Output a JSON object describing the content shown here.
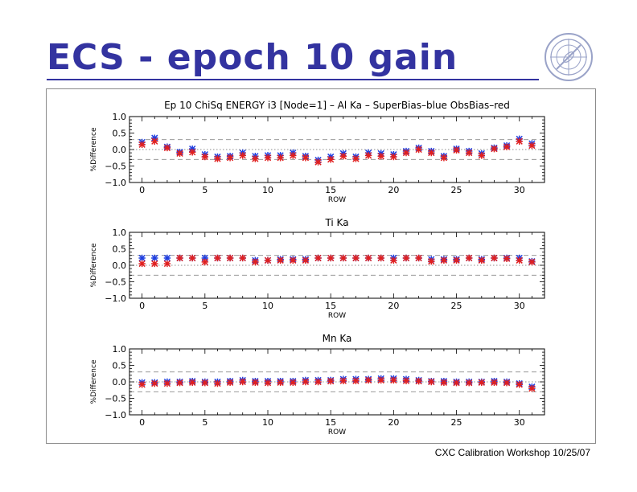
{
  "slide": {
    "title": "ECS - epoch 10 gain",
    "footer": "CXC Calibration Workshop 10/25/07",
    "logo_icon": "chandra-xray-center-logo-icon"
  },
  "colors": {
    "title": "#3333a0",
    "superbias": "#1f3fe0",
    "obsbias": "#e02020"
  },
  "chart_data": [
    {
      "type": "scatter",
      "title": "Ep 10 ChiSq ENERGY i3 [Node=1] – Al Ka – SuperBias–blue ObsBias–red",
      "xlabel": "ROW",
      "ylabel": "%Difference",
      "xlim": [
        -1,
        32
      ],
      "ylim": [
        -1.0,
        1.0
      ],
      "x_ticks": [
        0,
        5,
        10,
        15,
        20,
        25,
        30
      ],
      "y_ticks": [
        "1.0",
        "0.5",
        "0.0",
        "−0.5",
        "−1.0"
      ],
      "reference_lines": {
        "dotted": [
          0.0
        ],
        "dashed": [
          0.3,
          -0.3
        ]
      },
      "x": [
        0,
        1,
        2,
        3,
        4,
        5,
        6,
        7,
        8,
        9,
        10,
        11,
        12,
        13,
        14,
        15,
        16,
        17,
        18,
        19,
        20,
        21,
        22,
        23,
        24,
        25,
        26,
        27,
        28,
        29,
        30,
        31
      ],
      "series": [
        {
          "name": "SuperBias",
          "color": "blue",
          "values": [
            0.22,
            0.35,
            0.08,
            -0.08,
            0.02,
            -0.15,
            -0.22,
            -0.2,
            -0.1,
            -0.2,
            -0.18,
            -0.18,
            -0.1,
            -0.2,
            -0.32,
            -0.22,
            -0.12,
            -0.22,
            -0.1,
            -0.12,
            -0.15,
            -0.05,
            0.05,
            -0.05,
            -0.2,
            0.02,
            -0.05,
            -0.12,
            0.05,
            0.12,
            0.32,
            0.18
          ]
        },
        {
          "name": "ObsBias",
          "color": "red",
          "values": [
            0.15,
            0.25,
            0.05,
            -0.12,
            -0.08,
            -0.22,
            -0.28,
            -0.25,
            -0.18,
            -0.28,
            -0.25,
            -0.25,
            -0.18,
            -0.25,
            -0.38,
            -0.3,
            -0.2,
            -0.28,
            -0.18,
            -0.2,
            -0.22,
            -0.1,
            0.0,
            -0.1,
            -0.25,
            -0.02,
            -0.1,
            -0.18,
            0.02,
            0.08,
            0.25,
            0.12
          ]
        }
      ]
    },
    {
      "type": "scatter",
      "title": "Ti Ka",
      "xlabel": "ROW",
      "ylabel": "%Difference",
      "xlim": [
        -1,
        32
      ],
      "ylim": [
        -1.0,
        1.0
      ],
      "x_ticks": [
        0,
        5,
        10,
        15,
        20,
        25,
        30
      ],
      "y_ticks": [
        "1.0",
        "0.5",
        "0.0",
        "−0.5",
        "−1.0"
      ],
      "reference_lines": {
        "dotted": [
          0.0
        ],
        "dashed": [
          0.3,
          -0.3
        ]
      },
      "x": [
        0,
        1,
        2,
        3,
        4,
        5,
        6,
        7,
        8,
        9,
        10,
        11,
        12,
        13,
        14,
        15,
        16,
        17,
        18,
        19,
        20,
        21,
        22,
        23,
        24,
        25,
        26,
        27,
        28,
        29,
        30,
        31
      ],
      "series": [
        {
          "name": "SuperBias",
          "color": "blue",
          "values": [
            0.22,
            0.22,
            0.22,
            0.22,
            0.22,
            0.22,
            0.22,
            0.22,
            0.22,
            0.15,
            0.15,
            0.18,
            0.18,
            0.18,
            0.22,
            0.22,
            0.22,
            0.22,
            0.22,
            0.22,
            0.22,
            0.22,
            0.22,
            0.18,
            0.18,
            0.18,
            0.22,
            0.18,
            0.22,
            0.22,
            0.22,
            0.12
          ]
        },
        {
          "name": "ObsBias",
          "color": "red",
          "values": [
            0.05,
            0.05,
            0.05,
            0.22,
            0.22,
            0.1,
            0.22,
            0.22,
            0.22,
            0.1,
            0.15,
            0.15,
            0.15,
            0.15,
            0.22,
            0.22,
            0.22,
            0.22,
            0.22,
            0.22,
            0.15,
            0.22,
            0.22,
            0.12,
            0.15,
            0.15,
            0.22,
            0.15,
            0.22,
            0.2,
            0.15,
            0.1
          ]
        }
      ]
    },
    {
      "type": "scatter",
      "title": "Mn Ka",
      "xlabel": "ROW",
      "ylabel": "%Difference",
      "xlim": [
        -1,
        32
      ],
      "ylim": [
        -1.0,
        1.0
      ],
      "x_ticks": [
        0,
        5,
        10,
        15,
        20,
        25,
        30
      ],
      "y_ticks": [
        "1.0",
        "0.5",
        "0.0",
        "−0.5",
        "−1.0"
      ],
      "reference_lines": {
        "dotted": [
          0.0
        ],
        "dashed": [
          0.3,
          -0.3
        ]
      },
      "x": [
        0,
        1,
        2,
        3,
        4,
        5,
        6,
        7,
        8,
        9,
        10,
        11,
        12,
        13,
        14,
        15,
        16,
        17,
        18,
        19,
        20,
        21,
        22,
        23,
        24,
        25,
        26,
        27,
        28,
        29,
        30,
        31
      ],
      "series": [
        {
          "name": "SuperBias",
          "color": "blue",
          "values": [
            -0.02,
            -0.02,
            0.0,
            0.0,
            0.02,
            0.0,
            0.0,
            0.02,
            0.05,
            0.02,
            0.02,
            0.02,
            0.02,
            0.05,
            0.05,
            0.05,
            0.08,
            0.08,
            0.08,
            0.1,
            0.1,
            0.08,
            0.05,
            0.02,
            0.02,
            0.0,
            0.0,
            0.0,
            0.02,
            0.0,
            -0.05,
            -0.15
          ]
        },
        {
          "name": "ObsBias",
          "color": "red",
          "values": [
            -0.08,
            -0.05,
            -0.05,
            -0.03,
            -0.02,
            -0.03,
            -0.05,
            -0.02,
            0.0,
            -0.02,
            -0.03,
            -0.02,
            -0.02,
            0.0,
            0.0,
            0.02,
            0.03,
            0.03,
            0.05,
            0.05,
            0.05,
            0.03,
            0.02,
            0.0,
            -0.02,
            -0.03,
            -0.03,
            -0.02,
            -0.02,
            -0.03,
            -0.08,
            -0.2
          ]
        }
      ]
    }
  ]
}
